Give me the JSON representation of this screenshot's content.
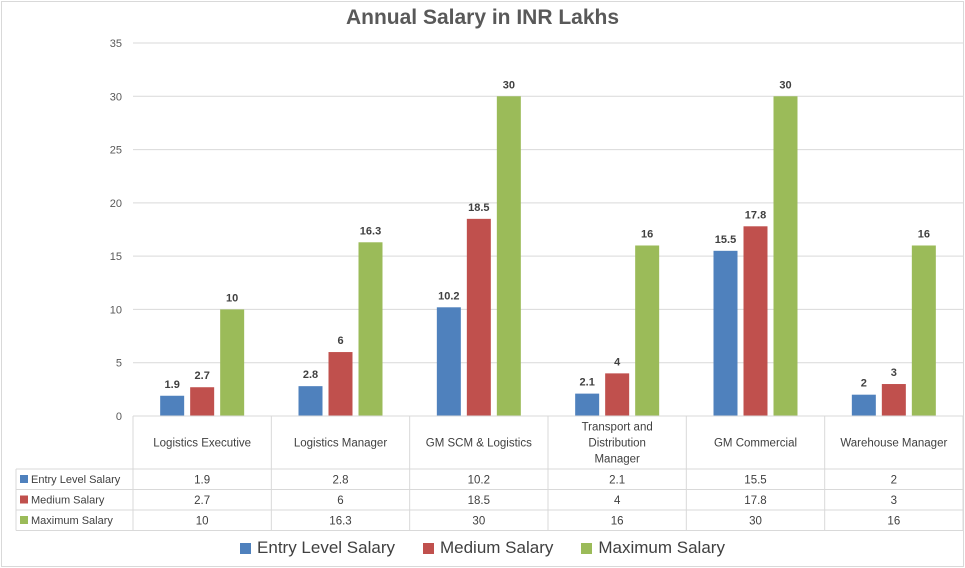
{
  "chart_data": {
    "type": "bar",
    "title": "Annual Salary in INR Lakhs",
    "xlabel": "",
    "ylabel": "",
    "ylim": [
      0,
      35
    ],
    "yticks": [
      0,
      5,
      10,
      15,
      20,
      25,
      30,
      35
    ],
    "grid": true,
    "legend_position": "bottom",
    "data_table": true,
    "categories": [
      "Logistics Executive",
      "Logistics Manager",
      "GM SCM & Logistics",
      "Transport and Distribution Manager",
      "GM Commercial",
      "Warehouse Manager"
    ],
    "category_label_lines": [
      [
        "Logistics Executive"
      ],
      [
        "Logistics Manager"
      ],
      [
        "GM SCM & Logistics"
      ],
      [
        "Transport and",
        "Distribution",
        "Manager"
      ],
      [
        "GM Commercial"
      ],
      [
        "Warehouse Manager"
      ]
    ],
    "series": [
      {
        "name": "Entry Level Salary",
        "color": "#4f81bd",
        "values": [
          1.9,
          2.8,
          10.2,
          2.1,
          15.5,
          2
        ]
      },
      {
        "name": "Medium Salary",
        "color": "#c0504d",
        "values": [
          2.7,
          6,
          18.5,
          4,
          17.8,
          3
        ]
      },
      {
        "name": "Maximum Salary",
        "color": "#9bbb59",
        "values": [
          10,
          16.3,
          30,
          16,
          30,
          16
        ]
      }
    ]
  }
}
